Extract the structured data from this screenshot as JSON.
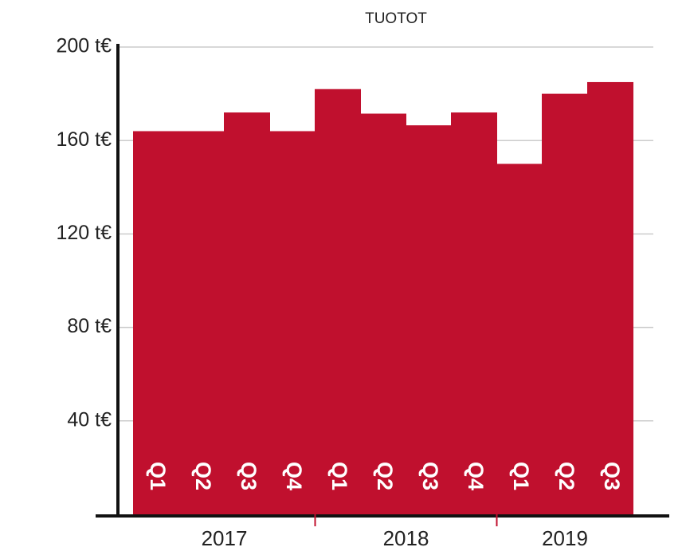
{
  "chart_data": {
    "type": "bar",
    "title": "TUOTOT",
    "categories": [
      "Q1",
      "Q2",
      "Q3",
      "Q4",
      "Q1",
      "Q2",
      "Q3",
      "Q4",
      "Q1",
      "Q2",
      "Q3"
    ],
    "groups": [
      "2017",
      "2018",
      "2019"
    ],
    "values": [
      164,
      164,
      172,
      164,
      182,
      171.5,
      166.5,
      172,
      150,
      180,
      185
    ],
    "color": "#c0102e",
    "ylim": [
      0,
      200
    ],
    "yticks": [
      {
        "value": 40,
        "label": "40 t€"
      },
      {
        "value": 80,
        "label": "80 t€"
      },
      {
        "value": 120,
        "label": "120 t€"
      },
      {
        "value": 160,
        "label": "160 t€"
      },
      {
        "value": 200,
        "label": "200 t€"
      }
    ],
    "grid": true
  }
}
